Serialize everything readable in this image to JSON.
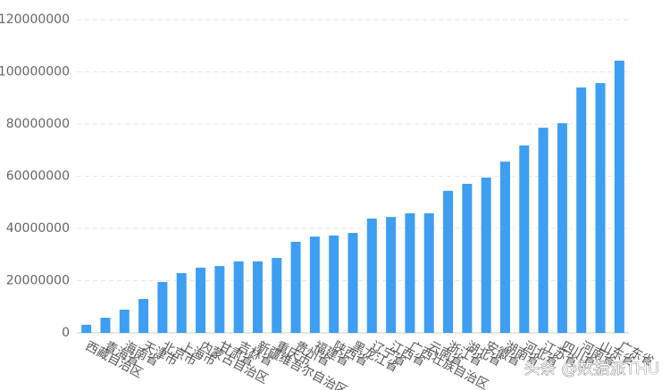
{
  "chart_data": {
    "type": "bar",
    "categories": [
      "西藏自治区",
      "青海省",
      "海南省",
      "天津市",
      "北京市",
      "上海市",
      "内蒙古自治区",
      "甘肃省",
      "吉林省",
      "新疆维吾尔自治区",
      "重庆市",
      "贵州省",
      "福建省",
      "陕西省",
      "黑龙江省",
      "辽宁省",
      "江西省",
      "广西壮族自治区",
      "云南省",
      "浙江省",
      "湖北省",
      "安徽省",
      "湖南省",
      "河北省",
      "江苏省",
      "四川省",
      "河南省",
      "山东省",
      "广东省"
    ],
    "values": [
      3100000,
      5800000,
      8900000,
      13000000,
      19500000,
      22900000,
      25000000,
      25600000,
      27400000,
      27400000,
      28700000,
      34900000,
      36900000,
      37300000,
      38300000,
      43800000,
      44400000,
      45800000,
      45800000,
      54400000,
      57100000,
      59500000,
      65600000,
      71800000,
      78600000,
      80300000,
      94000000,
      95700000,
      104300000
    ],
    "color": "#3d9ef3",
    "ylim": [
      0,
      120000000
    ],
    "yticks": [
      0,
      20000000,
      40000000,
      60000000,
      80000000,
      100000000,
      120000000
    ],
    "grid": true,
    "watermark": "头条 @数据派THU"
  }
}
